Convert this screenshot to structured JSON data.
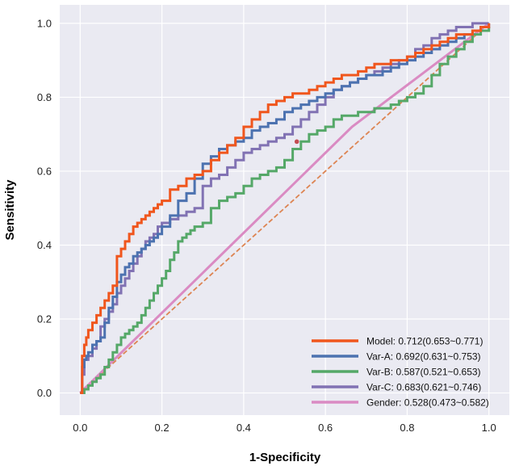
{
  "chart_data": {
    "type": "line",
    "title": "",
    "xlabel": "1-Specificity",
    "ylabel": "Sensitivity",
    "xlim": [
      -0.05,
      1.05
    ],
    "ylim": [
      -0.06,
      1.05
    ],
    "xticks": [
      "0.0",
      "0.2",
      "0.4",
      "0.6",
      "0.8",
      "1.0"
    ],
    "yticks": [
      "0.0",
      "0.2",
      "0.4",
      "0.6",
      "0.8",
      "1.0"
    ],
    "grid": true,
    "legend_position": "bottom-right",
    "background": "#eaeaf2",
    "reference_line": {
      "x": [
        0,
        1
      ],
      "y": [
        0,
        1
      ],
      "color": "#dd8452",
      "style": "dashed"
    },
    "marker": {
      "x": 0.53,
      "y": 0.68,
      "color": "#c44e52"
    },
    "series": [
      {
        "name": "Model",
        "legend": "Model: 0.712(0.653~0.771)",
        "color": "#f0561d",
        "x": [
          0,
          0.005,
          0.01,
          0.015,
          0.02,
          0.03,
          0.04,
          0.05,
          0.06,
          0.07,
          0.08,
          0.09,
          0.1,
          0.11,
          0.12,
          0.13,
          0.14,
          0.15,
          0.16,
          0.17,
          0.18,
          0.19,
          0.2,
          0.22,
          0.24,
          0.26,
          0.28,
          0.3,
          0.32,
          0.34,
          0.36,
          0.38,
          0.4,
          0.42,
          0.44,
          0.46,
          0.48,
          0.5,
          0.52,
          0.54,
          0.56,
          0.58,
          0.6,
          0.62,
          0.64,
          0.66,
          0.68,
          0.7,
          0.72,
          0.74,
          0.76,
          0.78,
          0.8,
          0.82,
          0.84,
          0.86,
          0.88,
          0.9,
          0.92,
          0.94,
          0.96,
          0.98,
          1.0
        ],
        "y": [
          0,
          0.1,
          0.13,
          0.15,
          0.17,
          0.19,
          0.21,
          0.23,
          0.25,
          0.27,
          0.29,
          0.37,
          0.39,
          0.41,
          0.43,
          0.45,
          0.46,
          0.47,
          0.48,
          0.49,
          0.5,
          0.51,
          0.52,
          0.55,
          0.56,
          0.58,
          0.59,
          0.6,
          0.63,
          0.65,
          0.67,
          0.69,
          0.72,
          0.74,
          0.76,
          0.78,
          0.79,
          0.8,
          0.81,
          0.81,
          0.82,
          0.83,
          0.84,
          0.85,
          0.86,
          0.86,
          0.87,
          0.88,
          0.89,
          0.89,
          0.9,
          0.9,
          0.91,
          0.92,
          0.93,
          0.94,
          0.95,
          0.96,
          0.97,
          0.97,
          0.98,
          0.99,
          1.0
        ]
      },
      {
        "name": "Var-A",
        "legend": "Var-A: 0.692(0.631~0.753)",
        "color": "#4c72b0",
        "x": [
          0,
          0.005,
          0.01,
          0.015,
          0.02,
          0.03,
          0.04,
          0.05,
          0.06,
          0.07,
          0.08,
          0.09,
          0.1,
          0.11,
          0.12,
          0.13,
          0.14,
          0.15,
          0.16,
          0.17,
          0.18,
          0.19,
          0.2,
          0.22,
          0.24,
          0.26,
          0.28,
          0.3,
          0.32,
          0.34,
          0.36,
          0.38,
          0.4,
          0.42,
          0.44,
          0.46,
          0.48,
          0.5,
          0.52,
          0.54,
          0.56,
          0.58,
          0.6,
          0.62,
          0.64,
          0.66,
          0.68,
          0.7,
          0.72,
          0.74,
          0.76,
          0.78,
          0.8,
          0.82,
          0.84,
          0.86,
          0.88,
          0.9,
          0.92,
          0.94,
          0.96,
          0.98,
          1.0
        ],
        "y": [
          0,
          0.07,
          0.09,
          0.1,
          0.11,
          0.13,
          0.14,
          0.15,
          0.19,
          0.23,
          0.26,
          0.3,
          0.32,
          0.34,
          0.35,
          0.37,
          0.38,
          0.39,
          0.4,
          0.41,
          0.42,
          0.43,
          0.45,
          0.48,
          0.52,
          0.54,
          0.58,
          0.62,
          0.64,
          0.66,
          0.67,
          0.68,
          0.69,
          0.71,
          0.72,
          0.73,
          0.74,
          0.76,
          0.77,
          0.78,
          0.79,
          0.8,
          0.81,
          0.82,
          0.83,
          0.84,
          0.85,
          0.86,
          0.86,
          0.87,
          0.88,
          0.89,
          0.9,
          0.91,
          0.92,
          0.93,
          0.94,
          0.95,
          0.96,
          0.97,
          0.98,
          0.99,
          1.0
        ]
      },
      {
        "name": "Var-B",
        "legend": "Var-B: 0.587(0.521~0.653)",
        "color": "#55a868",
        "x": [
          0,
          0.01,
          0.02,
          0.03,
          0.04,
          0.05,
          0.06,
          0.07,
          0.08,
          0.09,
          0.1,
          0.11,
          0.12,
          0.13,
          0.14,
          0.15,
          0.16,
          0.17,
          0.18,
          0.19,
          0.2,
          0.21,
          0.22,
          0.23,
          0.24,
          0.25,
          0.26,
          0.27,
          0.28,
          0.3,
          0.32,
          0.34,
          0.36,
          0.38,
          0.4,
          0.42,
          0.44,
          0.46,
          0.48,
          0.5,
          0.52,
          0.54,
          0.56,
          0.58,
          0.6,
          0.62,
          0.64,
          0.66,
          0.68,
          0.7,
          0.72,
          0.74,
          0.76,
          0.78,
          0.8,
          0.82,
          0.84,
          0.86,
          0.88,
          0.9,
          0.92,
          0.94,
          0.96,
          0.98,
          1.0
        ],
        "y": [
          0,
          0.01,
          0.02,
          0.03,
          0.04,
          0.05,
          0.07,
          0.09,
          0.11,
          0.13,
          0.15,
          0.16,
          0.17,
          0.18,
          0.19,
          0.21,
          0.23,
          0.25,
          0.27,
          0.29,
          0.31,
          0.33,
          0.36,
          0.38,
          0.41,
          0.42,
          0.43,
          0.44,
          0.45,
          0.46,
          0.5,
          0.52,
          0.53,
          0.54,
          0.56,
          0.58,
          0.59,
          0.6,
          0.61,
          0.63,
          0.66,
          0.68,
          0.7,
          0.71,
          0.72,
          0.74,
          0.75,
          0.75,
          0.76,
          0.76,
          0.77,
          0.77,
          0.78,
          0.79,
          0.8,
          0.81,
          0.83,
          0.86,
          0.89,
          0.91,
          0.93,
          0.95,
          0.97,
          0.98,
          0.99
        ]
      },
      {
        "name": "Var-C",
        "legend": "Var-C: 0.683(0.621~0.746)",
        "color": "#8172b3",
        "x": [
          0,
          0.005,
          0.01,
          0.02,
          0.03,
          0.04,
          0.05,
          0.06,
          0.07,
          0.08,
          0.09,
          0.1,
          0.11,
          0.12,
          0.13,
          0.14,
          0.15,
          0.16,
          0.17,
          0.18,
          0.19,
          0.2,
          0.22,
          0.24,
          0.26,
          0.28,
          0.3,
          0.32,
          0.34,
          0.36,
          0.38,
          0.4,
          0.42,
          0.44,
          0.46,
          0.48,
          0.5,
          0.52,
          0.54,
          0.56,
          0.58,
          0.6,
          0.62,
          0.64,
          0.66,
          0.68,
          0.7,
          0.72,
          0.74,
          0.76,
          0.78,
          0.8,
          0.82,
          0.84,
          0.86,
          0.88,
          0.9,
          0.92,
          0.94,
          0.96,
          0.98,
          1.0
        ],
        "y": [
          0,
          0.05,
          0.09,
          0.1,
          0.12,
          0.14,
          0.18,
          0.2,
          0.22,
          0.24,
          0.27,
          0.29,
          0.31,
          0.33,
          0.35,
          0.37,
          0.39,
          0.41,
          0.42,
          0.43,
          0.45,
          0.46,
          0.47,
          0.48,
          0.49,
          0.5,
          0.56,
          0.58,
          0.59,
          0.61,
          0.63,
          0.65,
          0.66,
          0.67,
          0.68,
          0.69,
          0.7,
          0.72,
          0.74,
          0.76,
          0.78,
          0.8,
          0.82,
          0.83,
          0.84,
          0.85,
          0.86,
          0.87,
          0.88,
          0.89,
          0.9,
          0.91,
          0.93,
          0.94,
          0.96,
          0.97,
          0.98,
          0.99,
          0.99,
          1.0,
          1.0,
          1.0
        ]
      },
      {
        "name": "Gender",
        "legend": "Gender: 0.528(0.473~0.582)",
        "color": "#da8bc3",
        "x": [
          0,
          0.665,
          1.0
        ],
        "y": [
          0,
          0.72,
          1.0
        ]
      }
    ]
  }
}
